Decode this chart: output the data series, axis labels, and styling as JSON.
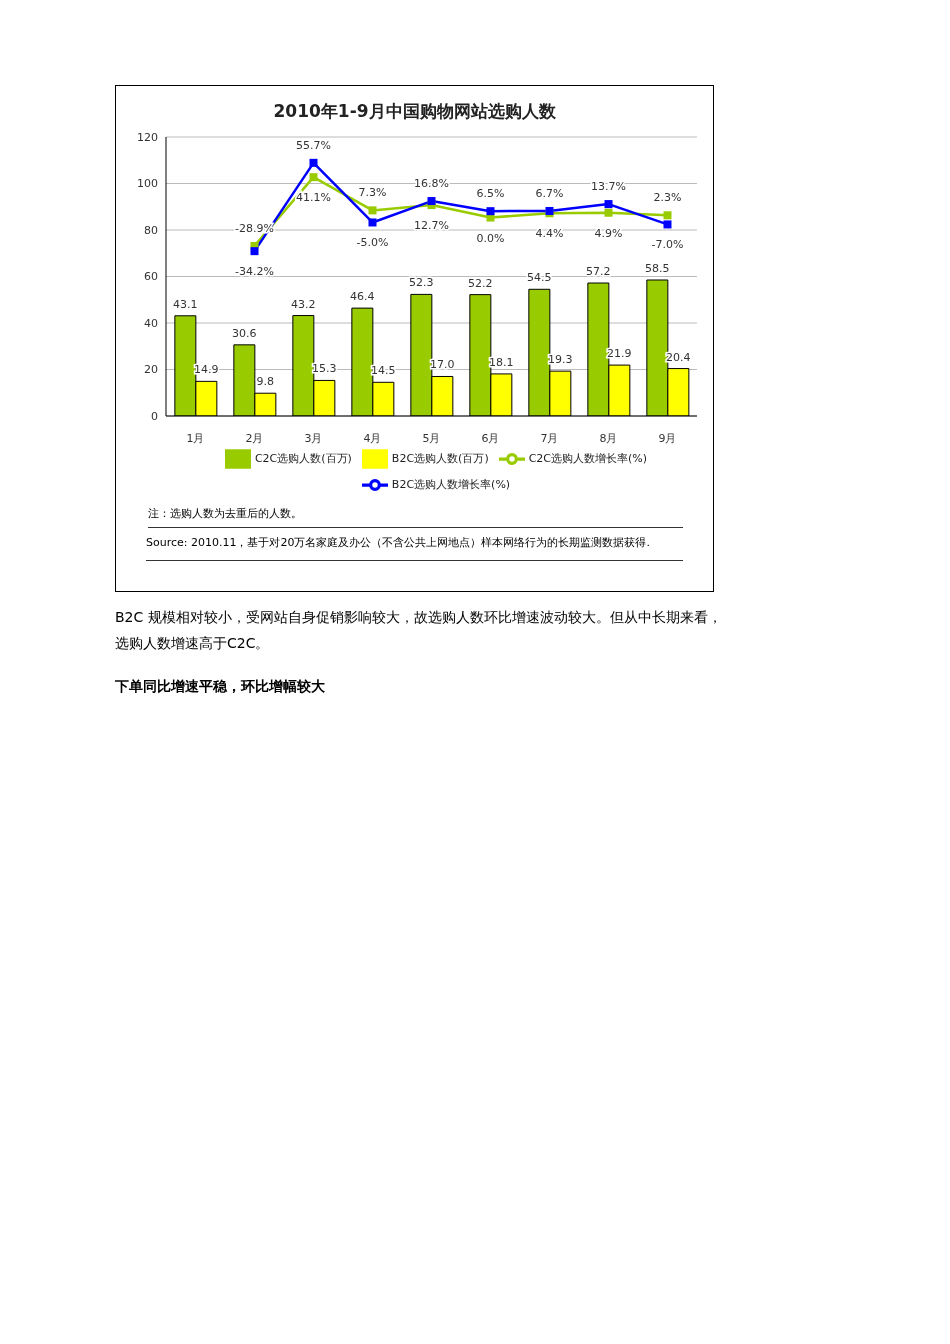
{
  "chart_data": {
    "type": "bar",
    "title": "2010年1-9月中国购物网站选购人数",
    "categories": [
      "1月",
      "2月",
      "3月",
      "4月",
      "5月",
      "6月",
      "7月",
      "8月",
      "9月"
    ],
    "series": [
      {
        "name": "C2C选购人数(百万)",
        "color": "#99cc00",
        "values": [
          43.1,
          30.6,
          43.2,
          46.4,
          52.3,
          52.2,
          54.5,
          57.2,
          58.5
        ],
        "value_labels": [
          "43.1",
          "30.6",
          "43.2",
          "46.4",
          "52.3",
          "52.2",
          "54.5",
          "57.2",
          "58.5"
        ]
      },
      {
        "name": "B2C选购人数(百万)",
        "color": "#ffff00",
        "values": [
          14.9,
          9.8,
          15.3,
          14.5,
          17.0,
          18.1,
          19.3,
          21.9,
          20.4
        ],
        "value_labels": [
          "14.9",
          "9.8",
          "15.3",
          "14.5",
          "17.0",
          "18.1",
          "19.3",
          "21.9",
          "20.4"
        ]
      },
      {
        "name": "C2C选购人数增长率(%)",
        "type": "line",
        "axis": "y2",
        "marker": "square",
        "color": "#99cc00",
        "values": [
          null,
          -28.9,
          41.1,
          7.3,
          12.7,
          0.0,
          4.4,
          4.9,
          2.3
        ],
        "value_labels": [
          null,
          "-28.9%",
          "41.1%",
          "7.3%",
          "12.7%",
          "0.0%",
          "4.4%",
          "4.9%",
          "2.3%"
        ]
      },
      {
        "name": "B2C选购人数增长率(%)",
        "type": "line",
        "axis": "y2",
        "marker": "square",
        "color": "#0000ff",
        "values": [
          null,
          -34.2,
          55.7,
          -5.0,
          16.8,
          6.5,
          6.7,
          13.7,
          -7.0
        ],
        "value_labels": [
          null,
          "-34.2%",
          "55.7%",
          "-5.0%",
          "16.8%",
          "6.5%",
          "6.7%",
          "13.7%",
          "-7.0%"
        ]
      }
    ],
    "ylim": [
      0,
      120
    ],
    "yticks": [
      0,
      20,
      40,
      60,
      80,
      100,
      120
    ],
    "y2lim": [
      -202,
      82
    ],
    "tick_labels": "xy",
    "grid": "y",
    "legend": "bottom",
    "annotations": [
      "注：选购人数为去重后的人数。",
      "Source: 2010.11，基于对20万名家庭及办公（不含公共上网地点）样本网络行为的长期监测数据获得.",
      "B2C 规模相对较小，受网站自身促销影响较大，故选购人数环比增速波动较大。但从中长期来看，选购人数增速高于C2C。",
      "下单同比增速平稳，环比增幅较大"
    ]
  }
}
